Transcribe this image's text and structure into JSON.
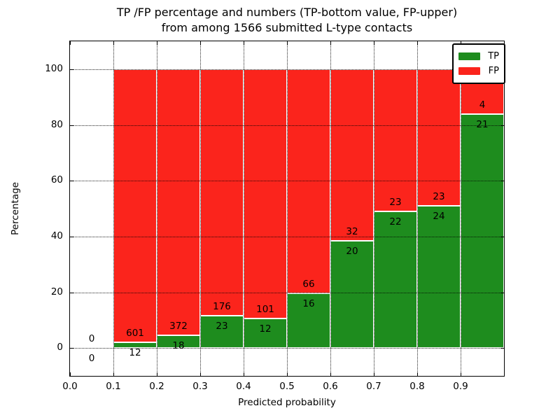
{
  "title": {
    "line1": "TP /FP percentage and numbers (TP-bottom value, FP-upper)",
    "line2": "from among 1566 submitted L-type contacts"
  },
  "axes": {
    "xlabel": "Predicted probability",
    "ylabel": "Percentage",
    "x_tick_labels": [
      "0.0",
      "0.1",
      "0.2",
      "0.3",
      "0.4",
      "0.5",
      "0.6",
      "0.7",
      "0.8",
      "0.9"
    ],
    "x_tick_values": [
      0,
      0.1,
      0.2,
      0.3,
      0.4,
      0.5,
      0.6,
      0.7,
      0.8,
      0.9
    ],
    "y_tick_labels": [
      "0",
      "20",
      "40",
      "60",
      "80",
      "100"
    ],
    "y_tick_values": [
      0,
      20,
      40,
      60,
      80,
      100
    ],
    "xlim": [
      0,
      1
    ],
    "ylim": [
      -10,
      110
    ],
    "grid_style": "dotted"
  },
  "legend": {
    "position": "upper-right",
    "entries": [
      {
        "label": "TP",
        "color": "#1e8c1e"
      },
      {
        "label": "FP",
        "color": "#fb241c"
      }
    ]
  },
  "colors": {
    "tp": "#1e8c1e",
    "fp": "#fb241c",
    "bar_edge": "#ffffff",
    "grid": "#000000",
    "background": "#ffffff"
  },
  "chart_data": {
    "type": "bar",
    "stacked": true,
    "title": "TP /FP percentage and numbers (TP-bottom value, FP-upper) from among 1566 submitted L-type contacts",
    "xlabel": "Predicted probability",
    "ylabel": "Percentage",
    "total_contacts": 1566,
    "bin_edges": [
      0.0,
      0.1,
      0.2,
      0.3,
      0.4,
      0.5,
      0.6,
      0.7,
      0.8,
      0.9,
      1.0
    ],
    "series": [
      {
        "name": "TP",
        "color": "#1e8c1e",
        "counts": [
          0,
          12,
          18,
          23,
          12,
          16,
          20,
          22,
          24,
          21
        ],
        "percent": [
          0,
          1.96,
          4.62,
          11.56,
          10.62,
          19.51,
          38.46,
          48.89,
          51.06,
          84.0
        ]
      },
      {
        "name": "FP",
        "color": "#fb241c",
        "counts": [
          0,
          601,
          372,
          176,
          101,
          66,
          32,
          23,
          23,
          4
        ],
        "percent": [
          0,
          98.04,
          95.38,
          88.44,
          89.38,
          80.49,
          61.54,
          51.11,
          48.94,
          16.0
        ]
      }
    ],
    "annotation_rule": "FP count printed just above TP/FP boundary, TP count just below",
    "xlim": [
      0,
      1
    ],
    "ylim": [
      -10,
      110
    ],
    "grid": true,
    "legend_position": "upper right"
  }
}
